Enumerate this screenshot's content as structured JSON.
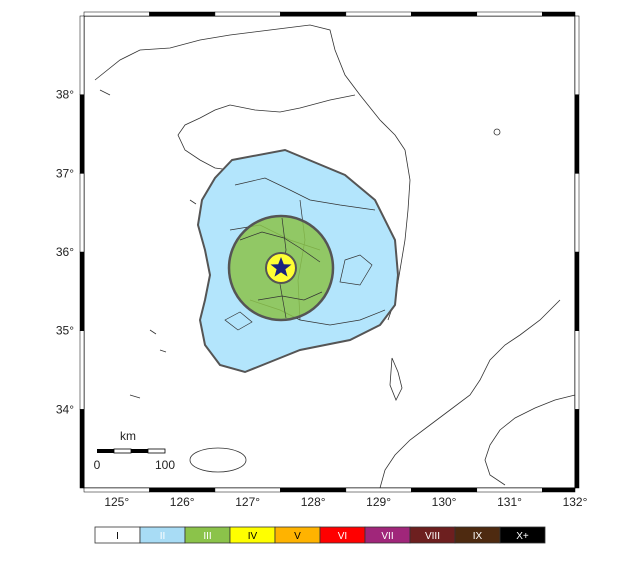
{
  "map": {
    "lon_labels": [
      "125°",
      "126°",
      "127°",
      "128°",
      "129°",
      "130°",
      "131°",
      "132°"
    ],
    "lat_labels": [
      "38°",
      "37°",
      "36°",
      "35°",
      "34°"
    ],
    "lon_range": [
      124.5,
      132
    ],
    "lat_range": [
      33,
      39
    ],
    "epicenter": {
      "lon": 127.5,
      "lat": 35.8,
      "icon": "star-icon",
      "color": "#1a237e"
    },
    "intensity_zones": [
      {
        "level": "III",
        "color": "#9ccc65"
      },
      {
        "level": "II",
        "color": "#b3e5fc"
      },
      {
        "level": "IV",
        "color": "#ffff33"
      }
    ]
  },
  "scale_bar": {
    "unit": "km",
    "start_label": "0",
    "end_label": "100"
  },
  "legend": {
    "items": [
      {
        "label": "I",
        "color": "#ffffff",
        "text_color": "#000000"
      },
      {
        "label": "II",
        "color": "#a8dcf5",
        "text_color": "#ffffff"
      },
      {
        "label": "III",
        "color": "#8bc34a",
        "text_color": "#ffffff"
      },
      {
        "label": "IV",
        "color": "#ffff00",
        "text_color": "#000000"
      },
      {
        "label": "V",
        "color": "#ffb300",
        "text_color": "#000000"
      },
      {
        "label": "VI",
        "color": "#ff0000",
        "text_color": "#ffffff"
      },
      {
        "label": "VII",
        "color": "#a0267a",
        "text_color": "#ffffff"
      },
      {
        "label": "VIII",
        "color": "#6d1f1f",
        "text_color": "#ffffff"
      },
      {
        "label": "IX",
        "color": "#4e2a10",
        "text_color": "#ffffff"
      },
      {
        "label": "X+",
        "color": "#000000",
        "text_color": "#ffffff"
      }
    ]
  }
}
